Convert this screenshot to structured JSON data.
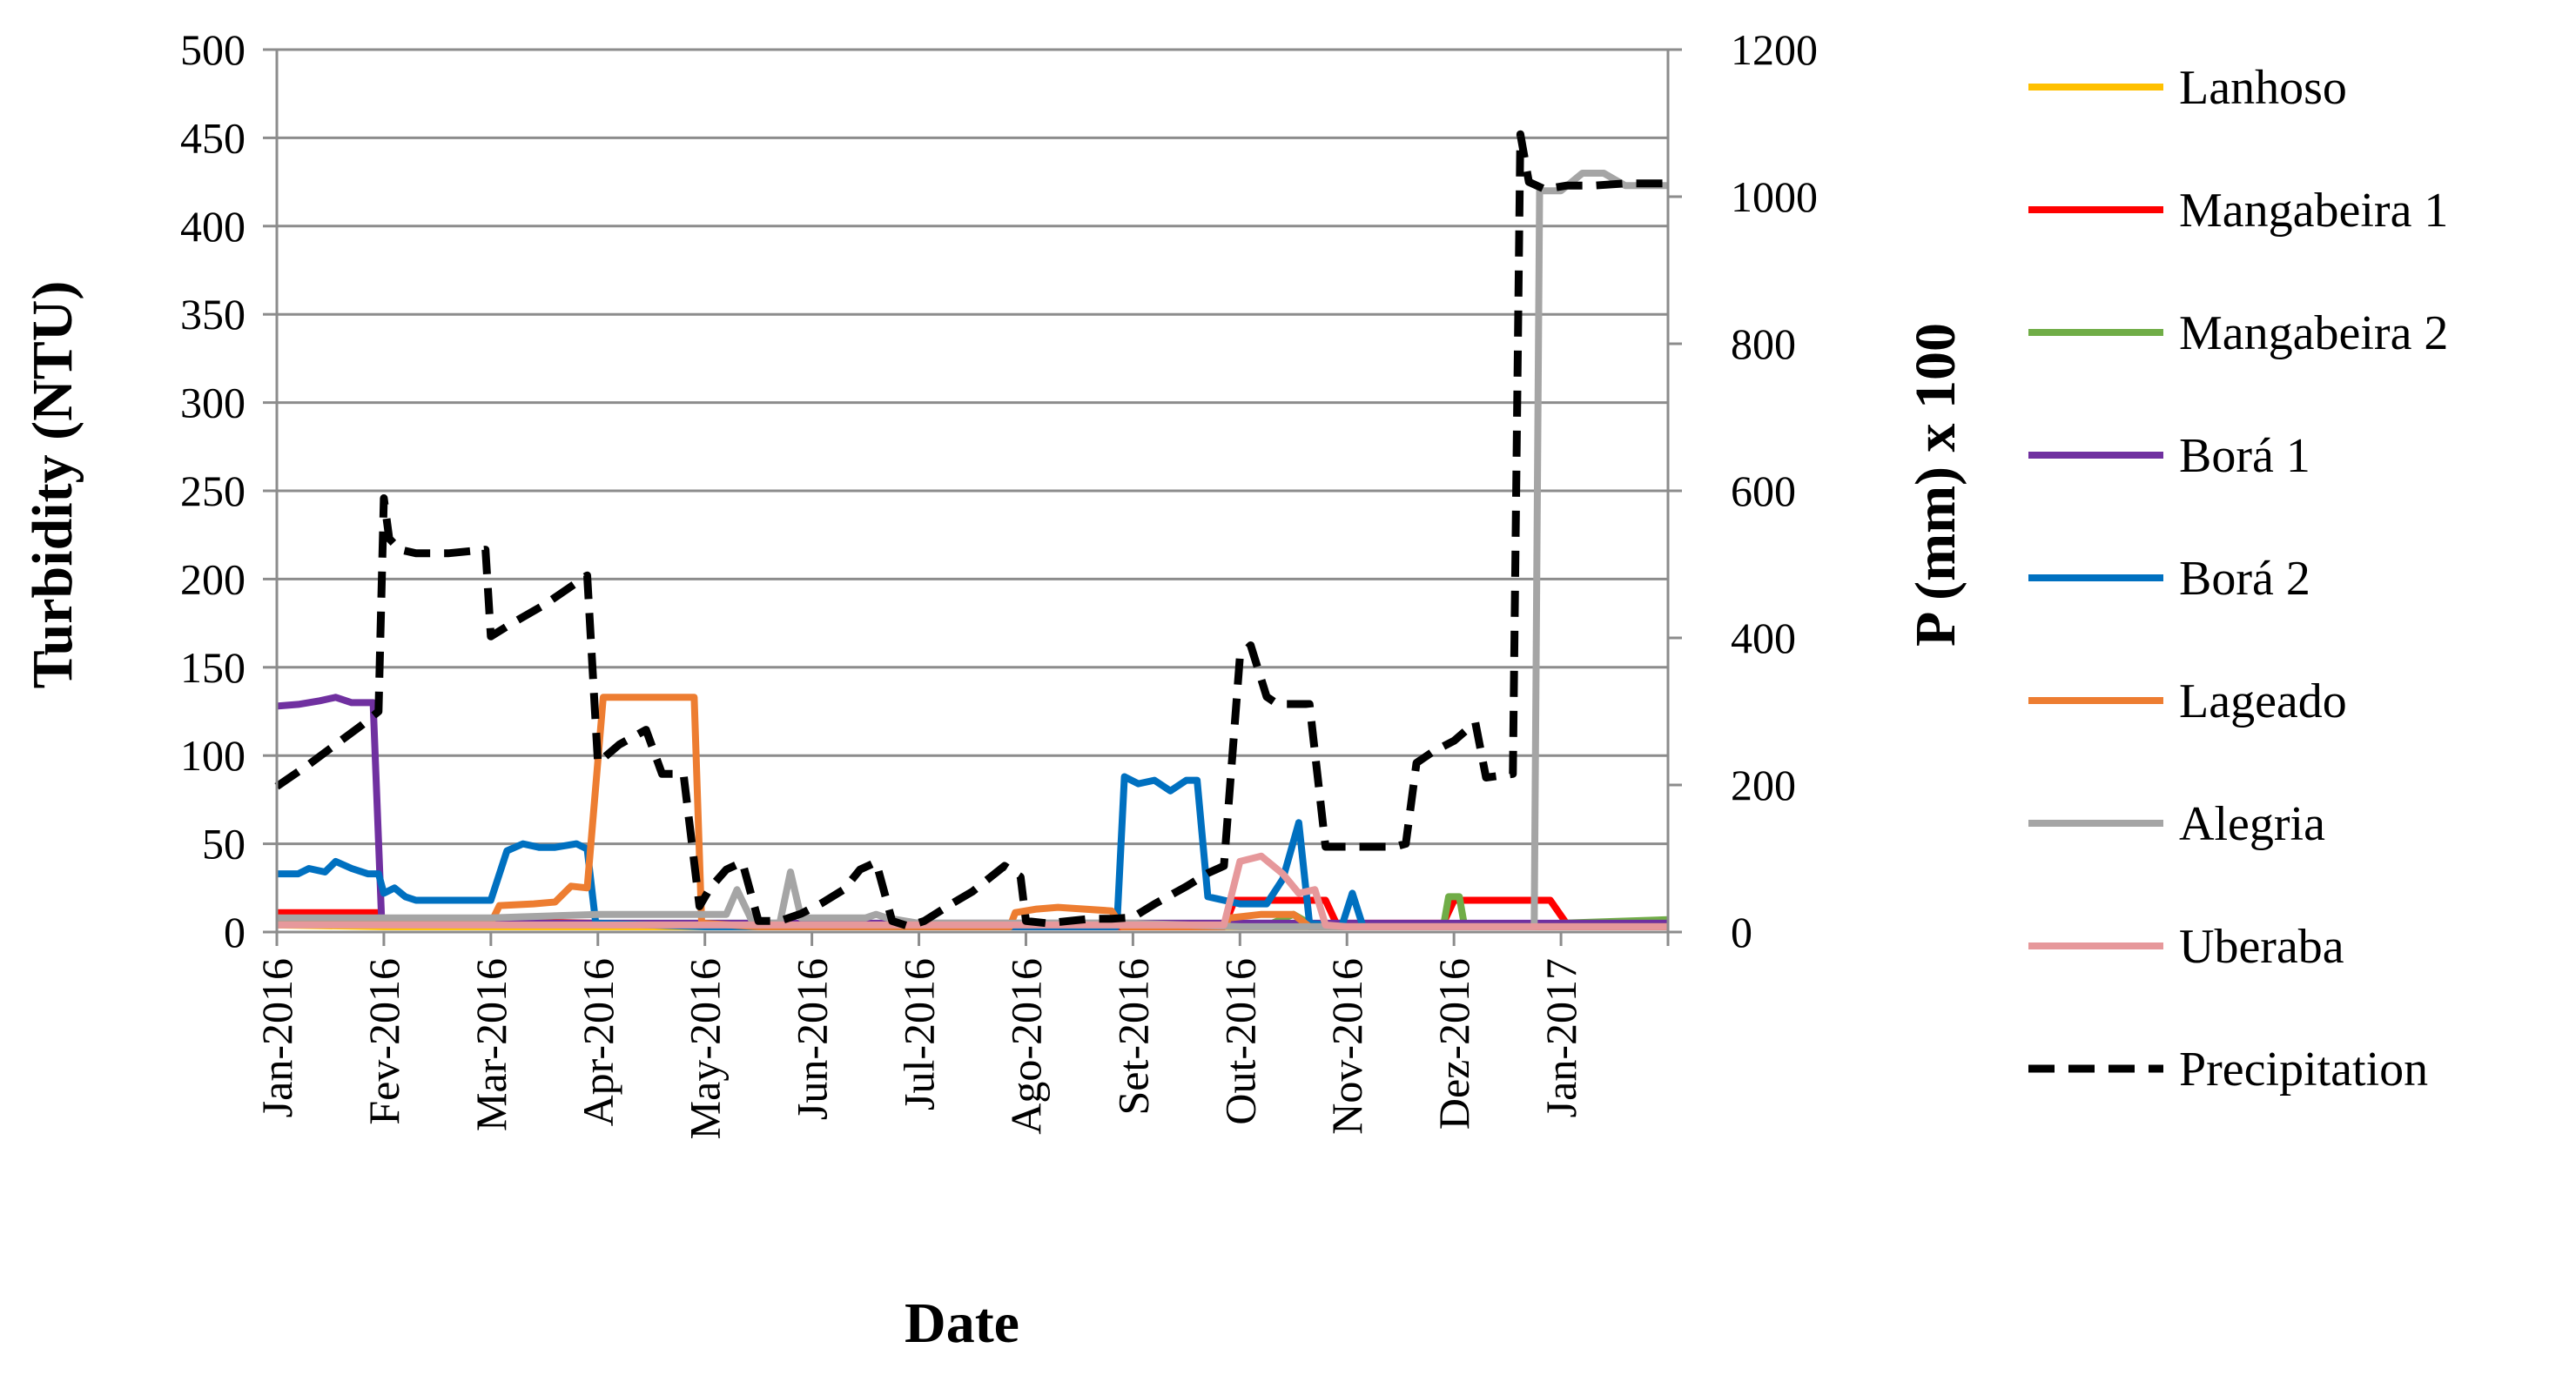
{
  "chart_data": {
    "type": "line",
    "xlabel": "Date",
    "ylabel": "Turbidity (NTU)",
    "y2label": "P (mm) x 100",
    "ylim": [
      0,
      500
    ],
    "y2lim": [
      0,
      1200
    ],
    "yticks": [
      "0",
      "50",
      "100",
      "150",
      "200",
      "250",
      "300",
      "350",
      "400",
      "450",
      "500"
    ],
    "y2ticks": [
      "0",
      "200",
      "400",
      "600",
      "800",
      "1000",
      "1200"
    ],
    "x_range": [
      0,
      13
    ],
    "x_ticks": [
      {
        "x": 0,
        "label": "Jan-2016"
      },
      {
        "x": 1,
        "label": "Fev-2016"
      },
      {
        "x": 2,
        "label": "Mar-2016"
      },
      {
        "x": 3,
        "label": "Apr-2016"
      },
      {
        "x": 4,
        "label": "May-2016"
      },
      {
        "x": 5,
        "label": "Jun-2016"
      },
      {
        "x": 6,
        "label": "Jul-2016"
      },
      {
        "x": 7,
        "label": "Ago-2016"
      },
      {
        "x": 8,
        "label": "Set-2016"
      },
      {
        "x": 9,
        "label": "Out-2016"
      },
      {
        "x": 10,
        "label": "Nov-2016"
      },
      {
        "x": 11,
        "label": "Dez-2016"
      },
      {
        "x": 12,
        "label": "Jan-2017"
      }
    ],
    "grid": "horizontal",
    "legend_position": "right",
    "series": [
      {
        "name": "Lanhoso",
        "color": "#FFC000",
        "dash": false,
        "axis": "left",
        "points": [
          [
            0,
            4
          ],
          [
            1,
            3
          ],
          [
            2,
            3
          ],
          [
            3,
            3
          ],
          [
            4,
            3
          ],
          [
            5,
            3
          ],
          [
            6,
            3
          ],
          [
            7,
            3
          ],
          [
            8,
            3
          ],
          [
            9,
            3
          ],
          [
            10,
            3
          ],
          [
            11,
            3
          ],
          [
            12,
            3
          ],
          [
            13,
            3
          ]
        ]
      },
      {
        "name": "Mangabeira 1",
        "color": "#FF0000",
        "dash": false,
        "axis": "left",
        "points": [
          [
            0,
            11
          ],
          [
            0.95,
            11
          ],
          [
            1.0,
            6
          ],
          [
            2.0,
            6
          ],
          [
            3.0,
            5
          ],
          [
            4.0,
            4
          ],
          [
            5.0,
            4
          ],
          [
            6.0,
            3
          ],
          [
            7.0,
            3
          ],
          [
            8.0,
            3
          ],
          [
            8.85,
            3
          ],
          [
            8.95,
            18
          ],
          [
            9.8,
            18
          ],
          [
            9.9,
            5
          ],
          [
            10.9,
            5
          ],
          [
            11.0,
            18
          ],
          [
            11.9,
            18
          ],
          [
            12.05,
            5
          ],
          [
            13,
            5
          ]
        ]
      },
      {
        "name": "Mangabeira 2",
        "color": "#70AD47",
        "dash": false,
        "axis": "left",
        "points": [
          [
            0,
            5
          ],
          [
            2,
            5
          ],
          [
            4,
            5
          ],
          [
            6,
            5
          ],
          [
            8,
            5
          ],
          [
            9.3,
            5
          ],
          [
            9.5,
            10
          ],
          [
            9.7,
            3
          ],
          [
            10.9,
            3
          ],
          [
            10.95,
            20
          ],
          [
            11.05,
            20
          ],
          [
            11.1,
            3
          ],
          [
            12,
            5
          ],
          [
            13,
            7
          ]
        ]
      },
      {
        "name": "Borá 1",
        "color": "#7030A0",
        "dash": false,
        "axis": "left",
        "points": [
          [
            0,
            128
          ],
          [
            0.2,
            129
          ],
          [
            0.4,
            131
          ],
          [
            0.55,
            133
          ],
          [
            0.7,
            130
          ],
          [
            0.9,
            130
          ],
          [
            0.98,
            5
          ],
          [
            1.5,
            5
          ],
          [
            2.5,
            5
          ],
          [
            2.95,
            5
          ],
          [
            3,
            5
          ],
          [
            13,
            5
          ]
        ]
      },
      {
        "name": "Borá 2",
        "color": "#0070C0",
        "dash": false,
        "axis": "left",
        "points": [
          [
            0,
            33
          ],
          [
            0.2,
            33
          ],
          [
            0.3,
            36
          ],
          [
            0.45,
            34
          ],
          [
            0.55,
            40
          ],
          [
            0.7,
            36
          ],
          [
            0.85,
            33
          ],
          [
            0.95,
            33
          ],
          [
            1.0,
            22
          ],
          [
            1.1,
            25
          ],
          [
            1.2,
            20
          ],
          [
            1.3,
            18
          ],
          [
            1.5,
            18
          ],
          [
            2.0,
            18
          ],
          [
            2.15,
            46
          ],
          [
            2.3,
            50
          ],
          [
            2.45,
            48
          ],
          [
            2.6,
            48
          ],
          [
            2.8,
            50
          ],
          [
            2.9,
            47
          ],
          [
            2.98,
            5
          ],
          [
            4,
            3
          ],
          [
            5,
            3
          ],
          [
            6,
            3
          ],
          [
            7,
            3
          ],
          [
            7.85,
            3
          ],
          [
            7.92,
            88
          ],
          [
            8.05,
            84
          ],
          [
            8.2,
            86
          ],
          [
            8.35,
            80
          ],
          [
            8.5,
            86
          ],
          [
            8.6,
            86
          ],
          [
            8.7,
            20
          ],
          [
            9.0,
            16
          ],
          [
            9.25,
            16
          ],
          [
            9.4,
            30
          ],
          [
            9.55,
            62
          ],
          [
            9.65,
            5
          ],
          [
            9.95,
            3
          ],
          [
            10.05,
            22
          ],
          [
            10.15,
            3
          ],
          [
            11,
            3
          ],
          [
            12,
            3
          ],
          [
            13,
            3
          ]
        ]
      },
      {
        "name": "Lageado",
        "color": "#ED7D31",
        "dash": false,
        "axis": "left",
        "points": [
          [
            0,
            8
          ],
          [
            1,
            5
          ],
          [
            2,
            5
          ],
          [
            2.08,
            15
          ],
          [
            2.4,
            16
          ],
          [
            2.6,
            17
          ],
          [
            2.75,
            26
          ],
          [
            2.9,
            25
          ],
          [
            3.05,
            133
          ],
          [
            3.9,
            133
          ],
          [
            3.97,
            5
          ],
          [
            4.5,
            3
          ],
          [
            5,
            3
          ],
          [
            6,
            3
          ],
          [
            6.85,
            3
          ],
          [
            6.9,
            11
          ],
          [
            7.1,
            13
          ],
          [
            7.3,
            14
          ],
          [
            7.8,
            12
          ],
          [
            7.9,
            3
          ],
          [
            8.85,
            3
          ],
          [
            8.9,
            8
          ],
          [
            9.2,
            10
          ],
          [
            9.5,
            10
          ],
          [
            9.65,
            3
          ],
          [
            10,
            3
          ],
          [
            11,
            3
          ],
          [
            12,
            3
          ],
          [
            13,
            3
          ]
        ]
      },
      {
        "name": "Alegria",
        "color": "#A5A5A5",
        "dash": false,
        "axis": "left",
        "points": [
          [
            0,
            8
          ],
          [
            1,
            8
          ],
          [
            2,
            8
          ],
          [
            3,
            10
          ],
          [
            3.5,
            10
          ],
          [
            3.98,
            10
          ],
          [
            4.2,
            10
          ],
          [
            4.3,
            24
          ],
          [
            4.45,
            5
          ],
          [
            4.7,
            5
          ],
          [
            4.8,
            34
          ],
          [
            4.9,
            8
          ],
          [
            5.2,
            8
          ],
          [
            5.5,
            8
          ],
          [
            5.6,
            10
          ],
          [
            5.7,
            8
          ],
          [
            6.0,
            5
          ],
          [
            7,
            5
          ],
          [
            8,
            5
          ],
          [
            9,
            3
          ],
          [
            10,
            3
          ],
          [
            11,
            3
          ],
          [
            11.75,
            3
          ],
          [
            11.8,
            420
          ],
          [
            12.0,
            420
          ],
          [
            12.2,
            430
          ],
          [
            12.4,
            430
          ],
          [
            12.6,
            423
          ],
          [
            13,
            423
          ]
        ]
      },
      {
        "name": "Uberaba",
        "color": "#E6989B",
        "dash": false,
        "axis": "left",
        "points": [
          [
            0,
            4
          ],
          [
            1,
            4
          ],
          [
            2,
            4
          ],
          [
            3,
            4
          ],
          [
            4,
            4
          ],
          [
            5,
            4
          ],
          [
            6,
            4
          ],
          [
            7,
            4
          ],
          [
            8,
            4
          ],
          [
            8.85,
            4
          ],
          [
            9.0,
            40
          ],
          [
            9.2,
            43
          ],
          [
            9.4,
            33
          ],
          [
            9.55,
            22
          ],
          [
            9.7,
            24
          ],
          [
            9.8,
            4
          ],
          [
            10,
            3
          ],
          [
            11,
            3
          ],
          [
            12,
            3
          ],
          [
            13,
            3
          ]
        ]
      },
      {
        "name": "Precipitation",
        "color": "#000000",
        "dash": true,
        "axis": "right",
        "points": [
          [
            0,
            198
          ],
          [
            0.3,
            228
          ],
          [
            0.55,
            255
          ],
          [
            0.8,
            282
          ],
          [
            0.95,
            300
          ],
          [
            1.0,
            590
          ],
          [
            1.05,
            535
          ],
          [
            1.15,
            520
          ],
          [
            1.3,
            515
          ],
          [
            1.6,
            515
          ],
          [
            1.95,
            520
          ],
          [
            2.0,
            402
          ],
          [
            2.2,
            420
          ],
          [
            2.5,
            445
          ],
          [
            2.75,
            470
          ],
          [
            2.9,
            485
          ],
          [
            3.0,
            230
          ],
          [
            3.2,
            255
          ],
          [
            3.45,
            275
          ],
          [
            3.6,
            215
          ],
          [
            3.8,
            215
          ],
          [
            3.95,
            35
          ],
          [
            4.05,
            60
          ],
          [
            4.2,
            85
          ],
          [
            4.35,
            95
          ],
          [
            4.5,
            15
          ],
          [
            4.7,
            15
          ],
          [
            4.9,
            25
          ],
          [
            5.1,
            40
          ],
          [
            5.3,
            58
          ],
          [
            5.45,
            85
          ],
          [
            5.6,
            95
          ],
          [
            5.75,
            15
          ],
          [
            5.9,
            8
          ],
          [
            6.05,
            15
          ],
          [
            6.3,
            38
          ],
          [
            6.5,
            55
          ],
          [
            6.8,
            90
          ],
          [
            6.95,
            75
          ],
          [
            7.0,
            15
          ],
          [
            7.2,
            12
          ],
          [
            7.4,
            15
          ],
          [
            7.6,
            18
          ],
          [
            7.8,
            18
          ],
          [
            8.0,
            20
          ],
          [
            8.2,
            38
          ],
          [
            8.5,
            62
          ],
          [
            8.7,
            80
          ],
          [
            8.85,
            90
          ],
          [
            9.0,
            375
          ],
          [
            9.1,
            390
          ],
          [
            9.25,
            320
          ],
          [
            9.35,
            310
          ],
          [
            9.5,
            310
          ],
          [
            9.65,
            310
          ],
          [
            9.8,
            116
          ],
          [
            10.0,
            116
          ],
          [
            10.2,
            116
          ],
          [
            10.45,
            116
          ],
          [
            10.55,
            120
          ],
          [
            10.65,
            230
          ],
          [
            10.8,
            245
          ],
          [
            11.0,
            260
          ],
          [
            11.2,
            285
          ],
          [
            11.3,
            210
          ],
          [
            11.55,
            215
          ],
          [
            11.62,
            1085
          ],
          [
            11.7,
            1020
          ],
          [
            11.85,
            1010
          ],
          [
            12.05,
            1015
          ],
          [
            12.3,
            1015
          ],
          [
            12.6,
            1018
          ],
          [
            13,
            1018
          ]
        ]
      }
    ]
  }
}
